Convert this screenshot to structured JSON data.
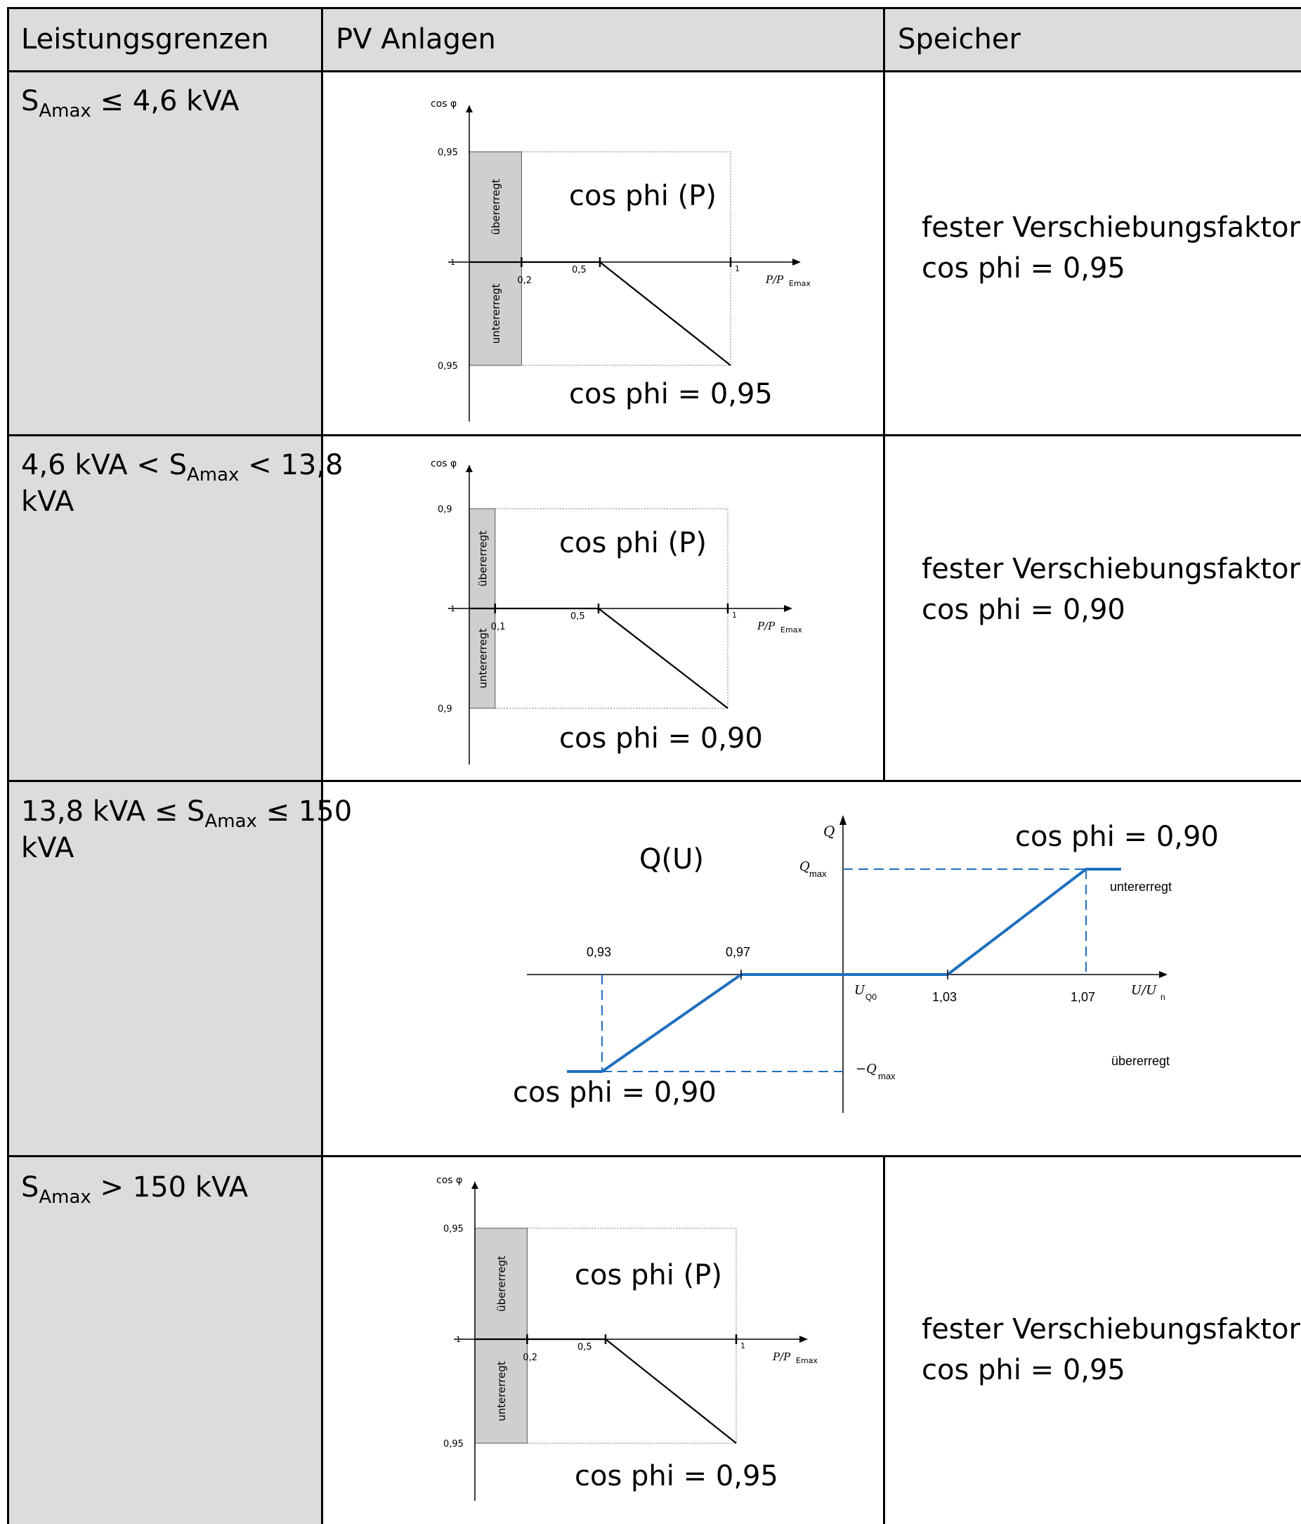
{
  "headers": {
    "limits": "Leistungsgrenzen",
    "pv": "PV Anlagen",
    "storage": "Speicher"
  },
  "rows": [
    {
      "limit": {
        "pre": "",
        "s": "S",
        "sub": "Amax",
        "post": " ≤ 4,6 kVA",
        "post2": ""
      },
      "storage": {
        "line1": "fester Verschiebungsfaktor",
        "line2": "cos phi = 0,95"
      }
    },
    {
      "limit": {
        "pre": "4,6 kVA < ",
        "s": "S",
        "sub": "Amax",
        "post": " < 13,8",
        "post2": "kVA"
      },
      "storage": {
        "line1": "fester Verschiebungsfaktor",
        "line2": "cos phi = 0,90"
      }
    },
    {
      "limit": {
        "pre": "13,8 kVA ≤ ",
        "s": "S",
        "sub": "Amax",
        "post": " ≤ 150",
        "post2": "kVA"
      }
    },
    {
      "limit": {
        "pre": "",
        "s": "S",
        "sub": "Amax",
        "post": " > 150 kVA",
        "post2": ""
      },
      "storage": {
        "line1": "fester Verschiebungsfaktor",
        "line2": "cos phi = 0,95"
      }
    }
  ],
  "chart_data": [
    {
      "type": "line",
      "ylabel": "cos φ",
      "xlabel": "P/P",
      "xlabel_sub": "Emax",
      "y_ticks": [
        "0,95",
        "1",
        "0,95"
      ],
      "x_ticks": [
        "0,2",
        "0,5",
        "1"
      ],
      "band_upper": "übererregt",
      "band_lower": "untererregt",
      "annotation_top": "cos phi (P)",
      "annotation_bottom": "cos phi = 0,95",
      "points": [
        [
          0.2,
          1
        ],
        [
          0.5,
          1
        ],
        [
          1,
          0.95
        ]
      ],
      "min_p": 0.2
    },
    {
      "type": "line",
      "ylabel": "cos φ",
      "xlabel": "P/P",
      "xlabel_sub": "Emax",
      "y_ticks": [
        "0,9",
        "1",
        "0,9"
      ],
      "x_ticks": [
        "0,1",
        "0,5",
        "1"
      ],
      "band_upper": "übererregt",
      "band_lower": "untererregt",
      "annotation_top": "cos phi (P)",
      "annotation_bottom": "cos phi = 0,90",
      "points": [
        [
          0.1,
          1
        ],
        [
          0.5,
          1
        ],
        [
          1,
          0.9
        ]
      ],
      "min_p": 0.1
    },
    {
      "type": "line",
      "title": "Q(U)",
      "ylabel": "Q",
      "xlabel": "U/U",
      "xlabel_sub": "n",
      "qmax": "Q",
      "qmax_sub": "max",
      "neg_qmax": "−Q",
      "neg_qmax_sub": "max",
      "uq0": "U",
      "uq0_sub": "Q0",
      "x_ticks": [
        "0,93",
        "0,97",
        "1,03",
        "1,07"
      ],
      "label_under": "untererregt",
      "label_over": "übererregt",
      "annotation_top": "cos phi = 0,90",
      "annotation_bottom": "cos phi = 0,90",
      "points": [
        [
          0.93,
          -1
        ],
        [
          0.97,
          0
        ],
        [
          1.03,
          0
        ],
        [
          1.07,
          1
        ]
      ],
      "color": "#1f6fbf"
    },
    {
      "type": "line",
      "ylabel": "cos φ",
      "xlabel": "P/P",
      "xlabel_sub": "Emax",
      "y_ticks": [
        "0,95",
        "1",
        "0,95"
      ],
      "x_ticks": [
        "0,2",
        "0,5",
        "1"
      ],
      "band_upper": "übererregt",
      "band_lower": "untererregt",
      "annotation_top": "cos phi (P)",
      "annotation_bottom": "cos phi = 0,95",
      "points": [
        [
          0.2,
          1
        ],
        [
          0.5,
          1
        ],
        [
          1,
          0.95
        ]
      ],
      "min_p": 0.2
    }
  ]
}
